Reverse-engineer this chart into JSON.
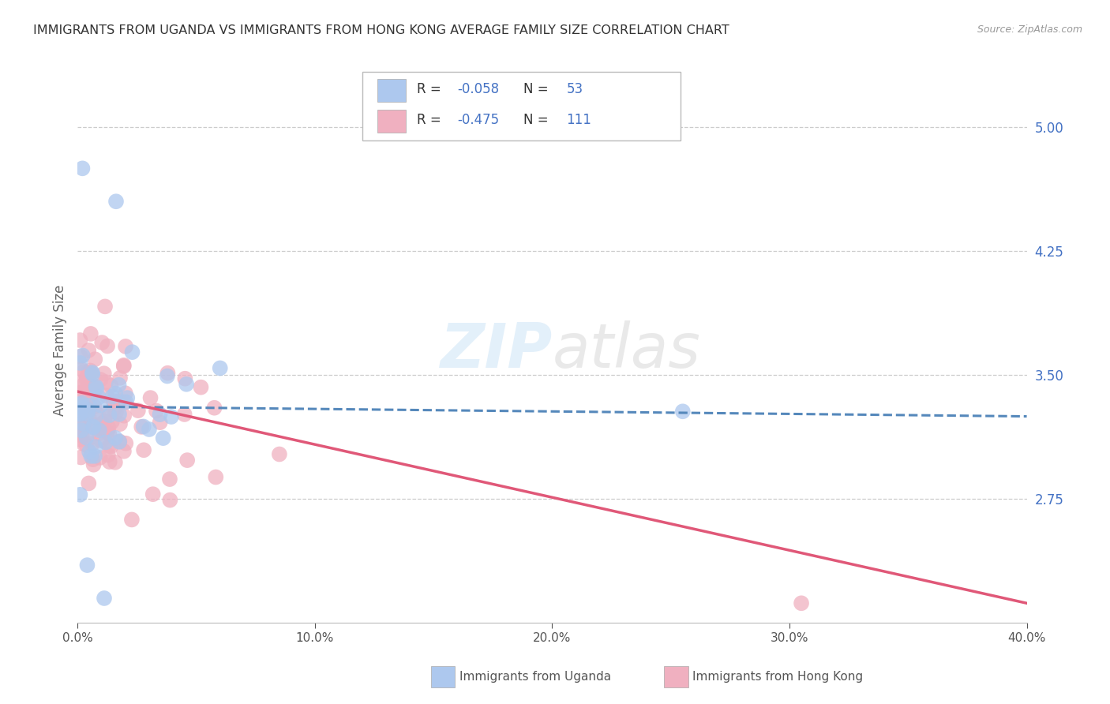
{
  "title": "IMMIGRANTS FROM UGANDA VS IMMIGRANTS FROM HONG KONG AVERAGE FAMILY SIZE CORRELATION CHART",
  "source": "Source: ZipAtlas.com",
  "ylabel": "Average Family Size",
  "xlim": [
    0.0,
    0.4
  ],
  "ylim": [
    2.0,
    5.3
  ],
  "yticks": [
    2.75,
    3.5,
    4.25,
    5.0
  ],
  "xticks": [
    0.0,
    0.1,
    0.2,
    0.3,
    0.4
  ],
  "xticklabels": [
    "0.0%",
    "10.0%",
    "20.0%",
    "30.0%",
    "40.0%"
  ],
  "legend_entries": [
    {
      "label": "Immigrants from Uganda",
      "color": "#adc8ee",
      "R": -0.058,
      "N": 53
    },
    {
      "label": "Immigrants from Hong Kong",
      "color": "#f0b0c0",
      "R": -0.475,
      "N": 111
    }
  ],
  "uganda_line_color": "#5588bb",
  "hongkong_line_color": "#e05878",
  "background_color": "#ffffff",
  "grid_color": "#cccccc",
  "title_color": "#333333",
  "source_color": "#999999",
  "axis_label_color": "#666666",
  "right_tick_color": "#4472c4"
}
